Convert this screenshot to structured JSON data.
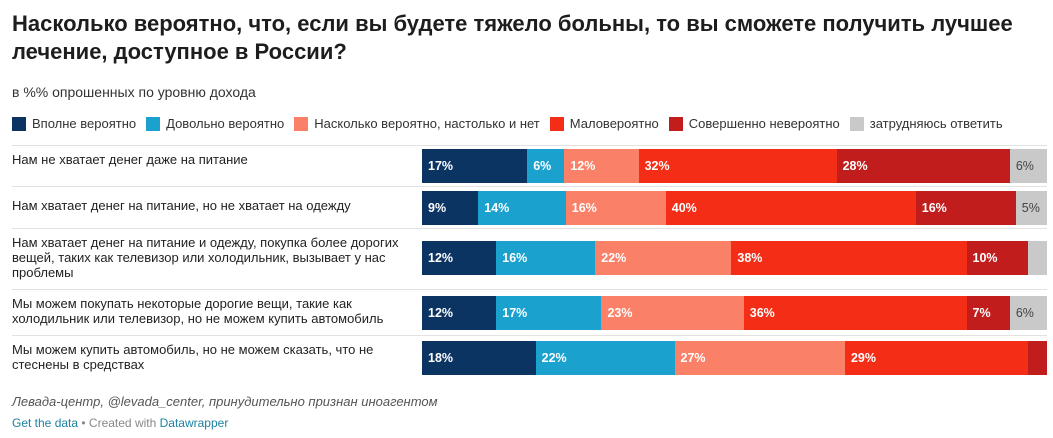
{
  "title": "Насколько вероятно, что, если вы будете тяжело больны, то вы сможете получить лучшее лечение, доступное в России?",
  "subtitle": "в %% опрошенных по уровню дохода",
  "chart_data": {
    "type": "bar",
    "stacked": true,
    "orientation": "horizontal",
    "title": "Насколько вероятно, что, если вы будете тяжело больны, то вы сможете получить лучшее лечение, доступное в России?",
    "subtitle": "в %% опрошенных по уровню дохода",
    "categories": [
      "Нам не хватает денег даже на питание",
      "Нам хватает денег на питание, но не хватает на одежду",
      "Нам хватает денег на питание и одежду, покупка более дорогих вещей, таких как телевизор или холодильник, вызывает у нас проблемы",
      "Мы можем покупать некоторые дорогие вещи, такие как холодильник или телевизор, но не можем купить автомобиль",
      "Мы можем купить автомобиль, но не можем сказать, что не стеснены в средствах"
    ],
    "series": [
      {
        "name": "Вполне вероятно",
        "color": "#0c3463",
        "values": [
          17,
          9,
          12,
          12,
          18
        ],
        "labels": [
          "17%",
          "9%",
          "12%",
          "12%",
          "18%"
        ]
      },
      {
        "name": "Довольно вероятно",
        "color": "#1aa1cd",
        "values": [
          6,
          14,
          16,
          17,
          22
        ],
        "labels": [
          "6%",
          "14%",
          "16%",
          "17%",
          "22%"
        ]
      },
      {
        "name": "Насколько вероятно, настолько и нет",
        "color": "#fa8068",
        "values": [
          12,
          16,
          22,
          23,
          27
        ],
        "labels": [
          "12%",
          "16%",
          "22%",
          "23%",
          "27%"
        ]
      },
      {
        "name": "Маловероятно",
        "color": "#f42d16",
        "values": [
          32,
          40,
          38,
          36,
          29
        ],
        "labels": [
          "32%",
          "40%",
          "38%",
          "36%",
          "29%"
        ]
      },
      {
        "name": "Совершенно невероятно",
        "color": "#c21d1d",
        "values": [
          28,
          16,
          10,
          7,
          3
        ],
        "labels": [
          "28%",
          "16%",
          "10%",
          "7%",
          ""
        ]
      },
      {
        "name": "затрудняюсь ответить",
        "color": "#c9c9c9",
        "values": [
          6,
          5,
          3,
          6,
          0
        ],
        "labels": [
          "6%",
          "5%",
          "",
          "6%",
          ""
        ]
      }
    ],
    "xlim": [
      0,
      100
    ],
    "legend_position": "top",
    "grid": false
  },
  "footer": {
    "source": "Левада-центр, @levada_center, принудительно признан иноагентом",
    "get_data": "Get the data",
    "separator": " • Created with ",
    "datawrapper": "Datawrapper"
  }
}
